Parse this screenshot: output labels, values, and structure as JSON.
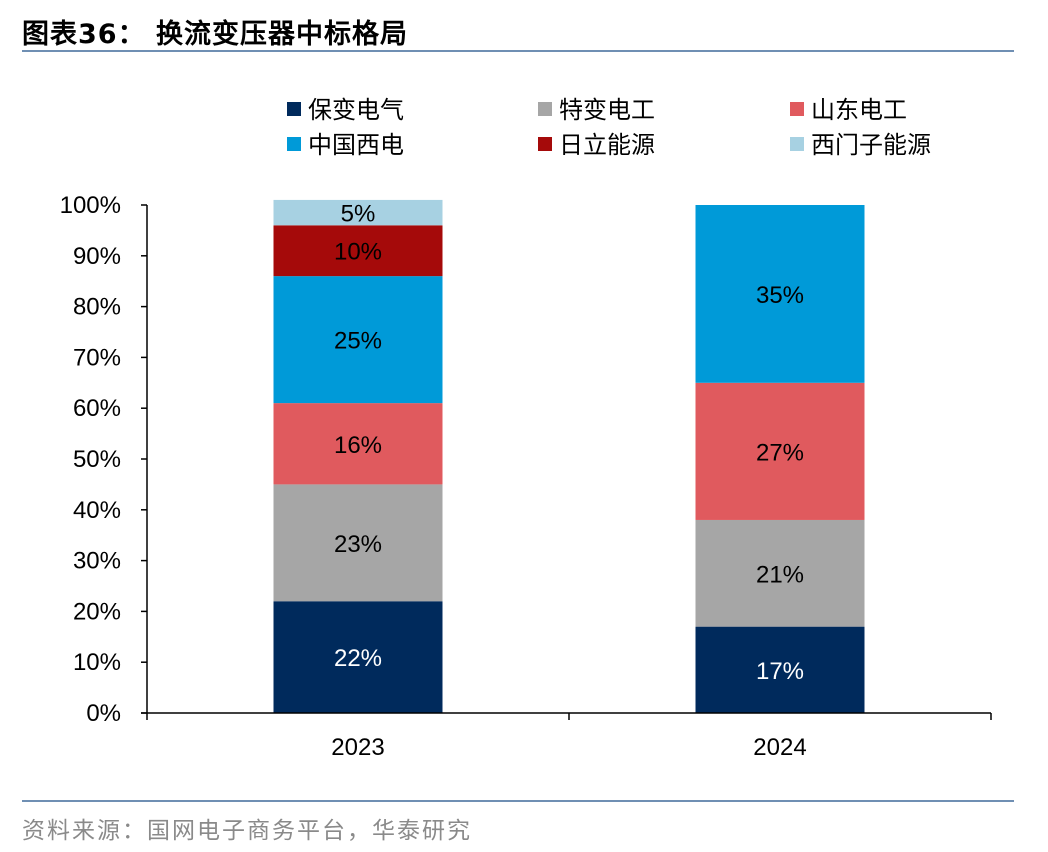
{
  "header": {
    "title": "图表36：  换流变压器中标格局"
  },
  "footer": {
    "source": "资料来源：国网电子商务平台，华泰研究"
  },
  "chart_data": {
    "type": "bar",
    "stacked": true,
    "title": "换流变压器中标格局",
    "categories": [
      "2023",
      "2024"
    ],
    "ylim": [
      0,
      100
    ],
    "yticks": [
      "0%",
      "10%",
      "20%",
      "30%",
      "40%",
      "50%",
      "60%",
      "70%",
      "80%",
      "90%",
      "100%"
    ],
    "legend_position": "top",
    "series": [
      {
        "name": "保变电气",
        "color": "#002a5c",
        "label_color": "#ffffff",
        "values": [
          22,
          17
        ],
        "labels": [
          "22%",
          "17%"
        ]
      },
      {
        "name": "特变电工",
        "color": "#a6a6a6",
        "label_color": "#000000",
        "values": [
          23,
          21
        ],
        "labels": [
          "23%",
          "21%"
        ]
      },
      {
        "name": "山东电工",
        "color": "#e05a5e",
        "label_color": "#000000",
        "values": [
          16,
          27
        ],
        "labels": [
          "16%",
          "27%"
        ]
      },
      {
        "name": "中国西电",
        "color": "#009ad8",
        "label_color": "#000000",
        "values": [
          25,
          35
        ],
        "labels": [
          "25%",
          "35%"
        ]
      },
      {
        "name": "日立能源",
        "color": "#a50a0a",
        "label_color": "#000000",
        "values": [
          10,
          0
        ],
        "labels": [
          "10%",
          ""
        ]
      },
      {
        "name": "西门子能源",
        "color": "#a7d1e2",
        "label_color": "#000000",
        "values": [
          5,
          0
        ],
        "labels": [
          "5%",
          ""
        ]
      }
    ]
  }
}
